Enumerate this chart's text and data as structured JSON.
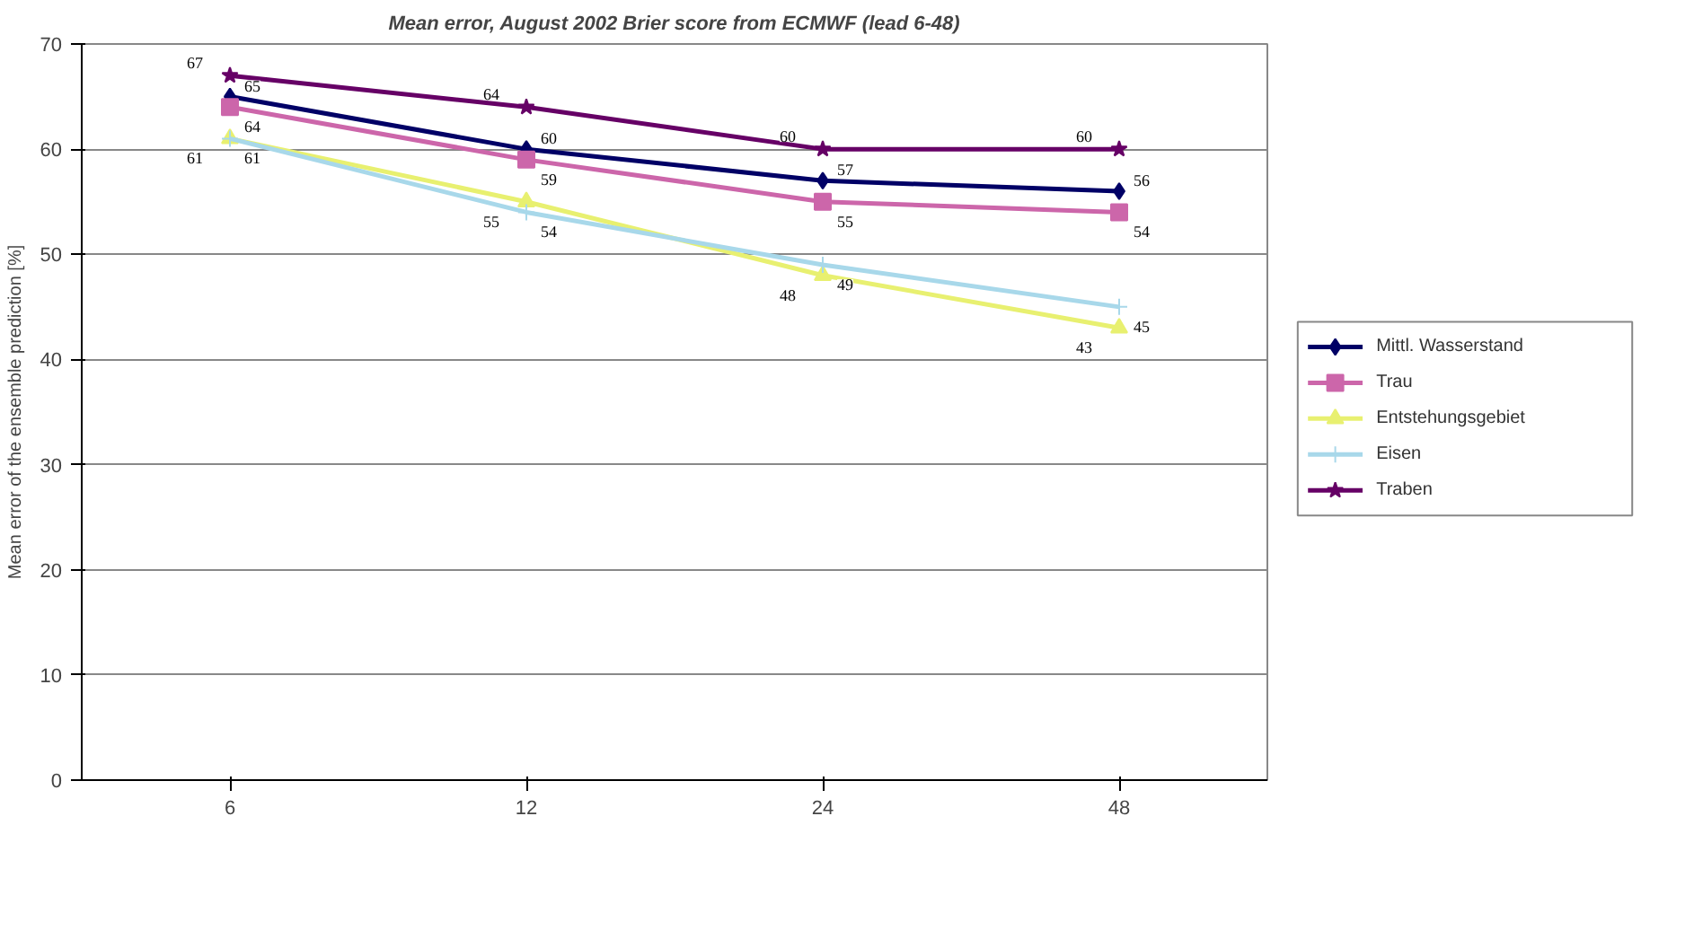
{
  "chart_data": {
    "type": "line",
    "title": "Mean error, August 2002 Brier score from ECMWF (lead 6-48)",
    "ylabel": "Mean error of the ensemble prediction [%]",
    "categories": [
      "6",
      "12",
      "24",
      "48"
    ],
    "series": [
      {
        "name": "Mittl. Wasserstand",
        "color": "#000066",
        "marker": "diamond",
        "values": [
          65,
          60,
          57,
          56
        ]
      },
      {
        "name": "Trau",
        "color": "#cc66aa",
        "marker": "square",
        "values": [
          64,
          59,
          55,
          54
        ]
      },
      {
        "name": "Entstehungsgebiet",
        "color": "#e8f070",
        "marker": "triangle",
        "values": [
          61,
          55,
          48,
          43
        ]
      },
      {
        "name": "Eisen",
        "color": "#a8d8ea",
        "marker": "cross",
        "values": [
          61,
          54,
          49,
          45
        ]
      },
      {
        "name": "Traben",
        "color": "#660066",
        "marker": "star",
        "values": [
          67,
          64,
          60,
          60
        ]
      }
    ],
    "ylim": [
      0,
      70
    ],
    "yticks": [
      0,
      10,
      20,
      30,
      40,
      50,
      60,
      70
    ],
    "grid": "y",
    "legend": "right",
    "data_labels": true,
    "line_style": "solid"
  }
}
